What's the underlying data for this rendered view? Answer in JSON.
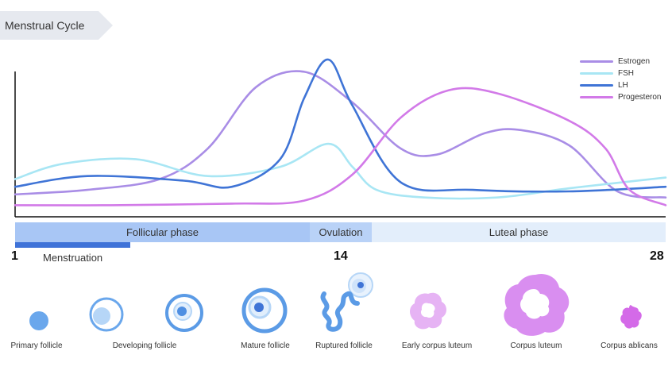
{
  "header": {
    "title": "Menstrual Cycle"
  },
  "colors": {
    "estrogen": "#a98de6",
    "fsh": "#a8e6f4",
    "lh": "#3f74d6",
    "progesterone": "#d27ae8",
    "follicle_blue": "#6aa7ec",
    "corpus_purple": "#d98ef0"
  },
  "chart_data": {
    "type": "line",
    "x_range": [
      1,
      28
    ],
    "series": [
      {
        "name": "Estrogen",
        "color": "#a98de6",
        "x": [
          1,
          4,
          7,
          9,
          11,
          13,
          15,
          17,
          18.5,
          20.5,
          22,
          24,
          26,
          28
        ],
        "y": [
          0.12,
          0.15,
          0.22,
          0.42,
          0.82,
          0.92,
          0.72,
          0.42,
          0.38,
          0.52,
          0.54,
          0.44,
          0.14,
          0.1
        ]
      },
      {
        "name": "FSH",
        "color": "#a8e6f4",
        "x": [
          1,
          3,
          6,
          9,
          12,
          14,
          15,
          16,
          18,
          21,
          24,
          28
        ],
        "y": [
          0.22,
          0.32,
          0.35,
          0.24,
          0.3,
          0.45,
          0.3,
          0.15,
          0.1,
          0.1,
          0.16,
          0.23
        ]
      },
      {
        "name": "LH",
        "color": "#3f74d6",
        "x": [
          1,
          4,
          8,
          10,
          12,
          13,
          14,
          15,
          17,
          20,
          24,
          28
        ],
        "y": [
          0.17,
          0.24,
          0.21,
          0.17,
          0.35,
          0.75,
          1.0,
          0.7,
          0.2,
          0.15,
          0.14,
          0.17
        ]
      },
      {
        "name": "Progesteron",
        "color": "#d27ae8",
        "x": [
          1,
          5,
          10,
          13,
          15,
          17,
          19,
          21,
          24,
          25.5,
          26.5,
          28
        ],
        "y": [
          0.05,
          0.05,
          0.06,
          0.08,
          0.25,
          0.62,
          0.8,
          0.78,
          0.6,
          0.42,
          0.15,
          0.05
        ]
      }
    ],
    "x_ticks": [
      "1",
      "14",
      "28"
    ]
  },
  "phases": {
    "follicular": "Follicular phase",
    "ovulation": "Ovulation",
    "luteal": "Luteal phase",
    "menstruation": "Menstruation"
  },
  "days": {
    "start": "1",
    "mid": "14",
    "end": "28"
  },
  "stages": [
    {
      "label": "Primary follicle",
      "icon": "primary-follicle-icon"
    },
    {
      "label": "Developing follicle",
      "icon": "developing-follicle-icon"
    },
    {
      "label": "Mature follicle",
      "icon": "mature-follicle-icon"
    },
    {
      "label": "Ruptured follicle",
      "icon": "ruptured-follicle-icon"
    },
    {
      "label": "Early corpus luteum",
      "icon": "early-corpus-luteum-icon"
    },
    {
      "label": "Corpus luteum",
      "icon": "corpus-luteum-icon"
    },
    {
      "label": "Corpus ablicans",
      "icon": "corpus-albicans-icon"
    }
  ]
}
